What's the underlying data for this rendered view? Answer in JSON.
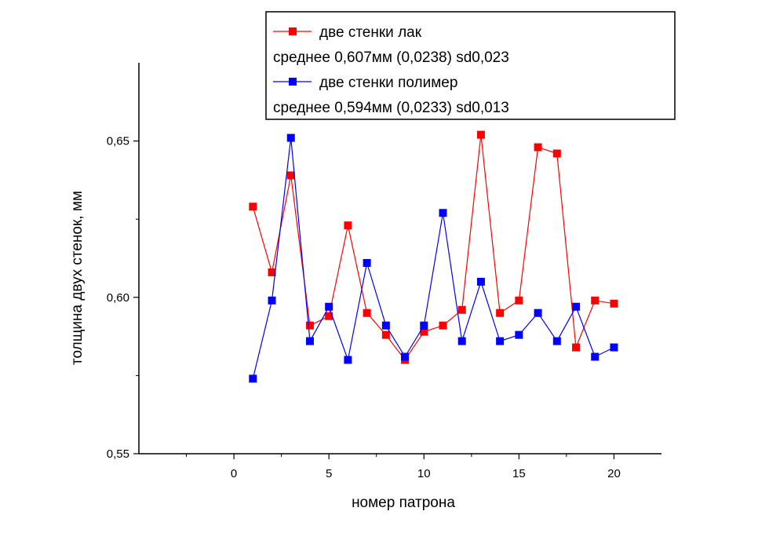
{
  "chart_data": {
    "type": "line",
    "xlabel": "номер патрона",
    "ylabel": "толщина двух стенок, мм",
    "xlim": [
      -5,
      22.5
    ],
    "ylim": [
      0.55,
      0.675
    ],
    "x_ticks": [
      0,
      5,
      10,
      15,
      20
    ],
    "x_tick_labels": [
      "0",
      "5",
      "10",
      "15",
      "20"
    ],
    "y_ticks": [
      0.55,
      0.6,
      0.65
    ],
    "y_tick_labels": [
      "0,55",
      "0,60",
      "0,65"
    ],
    "grid": false,
    "legend_position": "top-right",
    "x": [
      1,
      2,
      3,
      4,
      5,
      6,
      7,
      8,
      9,
      10,
      11,
      12,
      13,
      14,
      15,
      16,
      17,
      18,
      19,
      20
    ],
    "series": [
      {
        "name": "две стенки лак",
        "note": "среднее 0,607мм (0,0238) sd0,023",
        "color": "#ff0000",
        "marker_color": "#ff0000",
        "values": [
          0.629,
          0.608,
          0.639,
          0.591,
          0.594,
          0.623,
          0.595,
          0.588,
          0.58,
          0.589,
          0.591,
          0.596,
          0.652,
          0.595,
          0.599,
          0.648,
          0.646,
          0.584,
          0.599,
          0.598
        ]
      },
      {
        "name": "две стенки полимер",
        "note": "среднее 0,594мм (0,0233) sd0,013",
        "color": "#0000ff",
        "marker_color": "#0000ff",
        "values": [
          0.574,
          0.599,
          0.651,
          0.586,
          0.597,
          0.58,
          0.611,
          0.591,
          0.581,
          0.591,
          0.627,
          0.586,
          0.605,
          0.586,
          0.588,
          0.595,
          0.586,
          0.597,
          0.581,
          0.584
        ]
      }
    ]
  }
}
